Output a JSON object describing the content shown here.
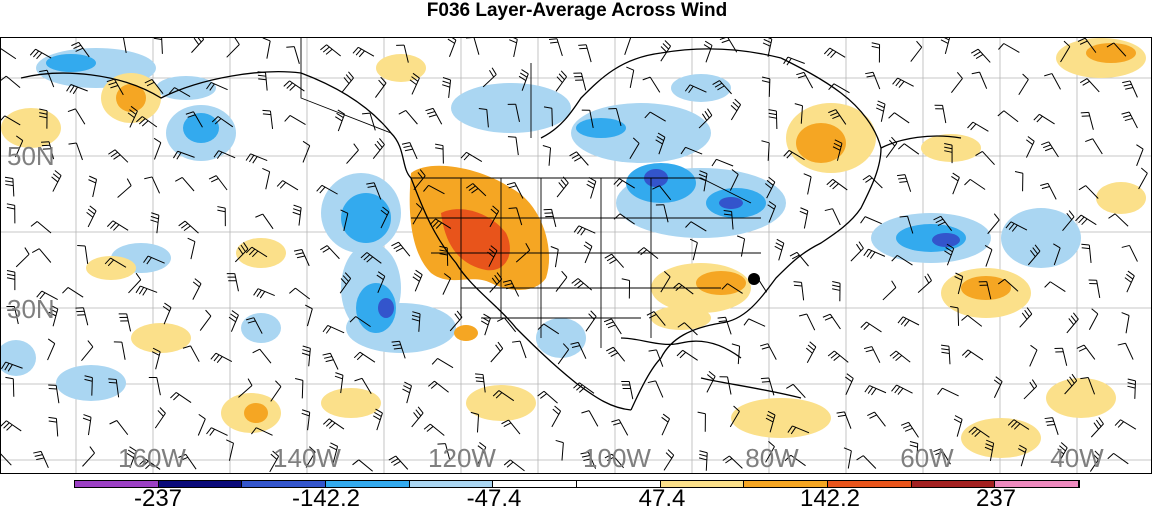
{
  "title": "F036 Layer-Average Across Wind",
  "lat_labels": [
    "50N",
    "30N"
  ],
  "lon_labels": [
    "160W",
    "140W",
    "120W",
    "100W",
    "80W",
    "60W",
    "40W"
  ],
  "colorbar": {
    "labels": [
      "-237",
      "-142.2",
      "-47.4",
      "47.4",
      "142.2",
      "237"
    ],
    "colors": [
      "#9b3fc4",
      "#0a0a7a",
      "#3355cc",
      "#33aaee",
      "#aad6f2",
      "#ffffff",
      "#ffffff",
      "#fbe08a",
      "#f5a623",
      "#e8541b",
      "#a32121",
      "#ee8abf"
    ]
  },
  "map": {
    "region": "North America and adjacent oceans",
    "field": "layer-average across wind",
    "station_marker": "black dot over the southeastern United States"
  }
}
